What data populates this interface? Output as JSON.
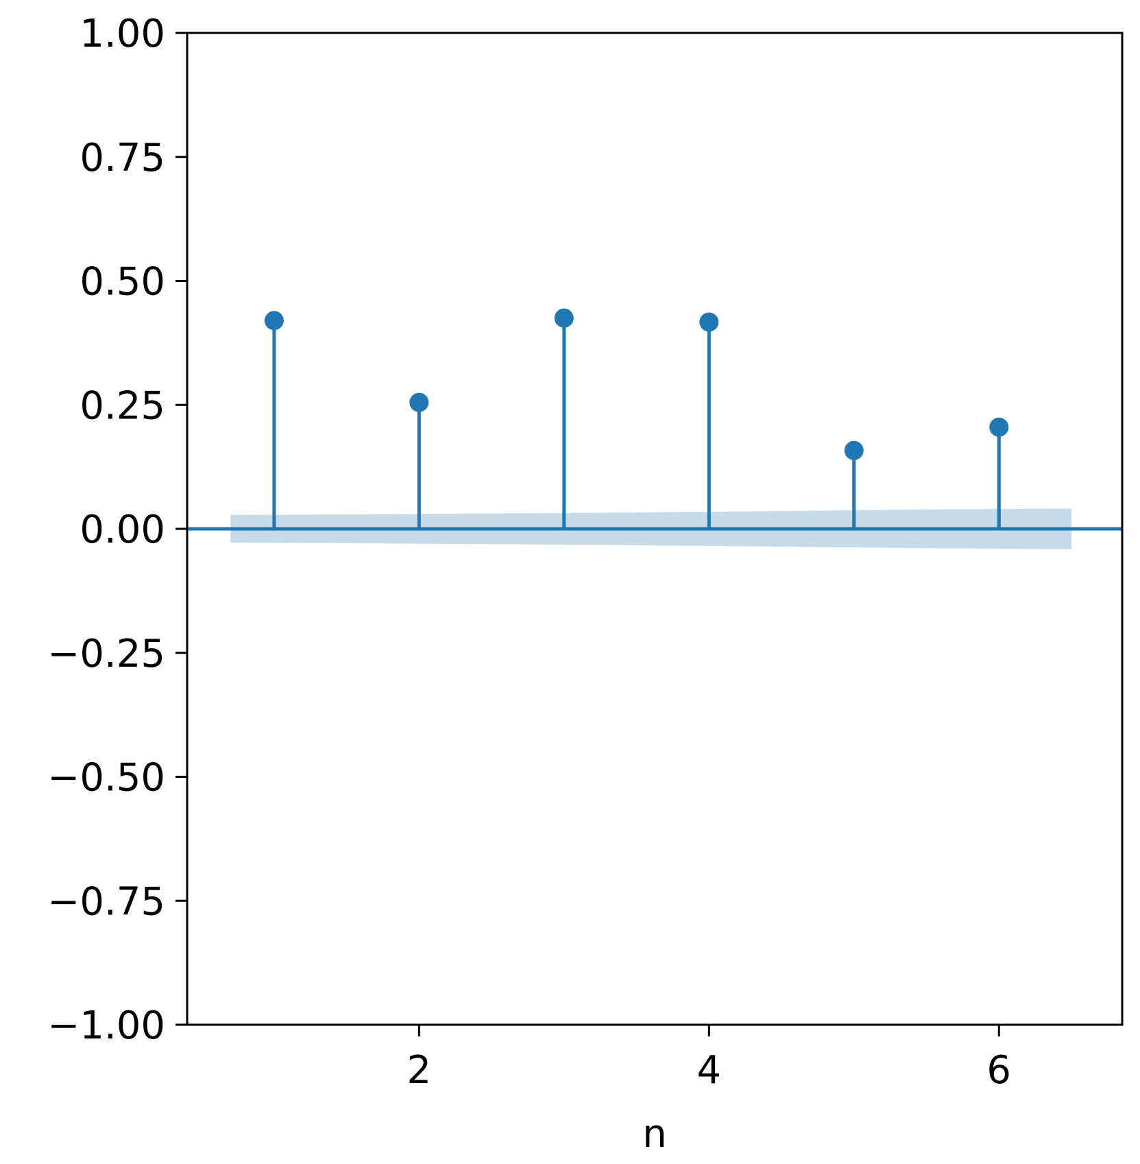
{
  "chart_data": {
    "type": "stem",
    "title": "",
    "xlabel": "n",
    "ylabel": "",
    "x": [
      1,
      2,
      3,
      4,
      5,
      6
    ],
    "values": [
      0.42,
      0.255,
      0.425,
      0.417,
      0.158,
      0.205
    ],
    "confidence_band": {
      "x": [
        0.7,
        1.5,
        2.5,
        3.5,
        4.5,
        5.5,
        6.5
      ],
      "upper": [
        0.028,
        0.029,
        0.031,
        0.033,
        0.036,
        0.039,
        0.041
      ],
      "lower": [
        -0.028,
        -0.029,
        -0.031,
        -0.033,
        -0.036,
        -0.039,
        -0.041
      ]
    },
    "xlim": [
      0.4,
      6.85
    ],
    "ylim": [
      -1.0,
      1.0
    ],
    "xticks": [
      2,
      4,
      6
    ],
    "xtick_labels": [
      "2",
      "4",
      "6"
    ],
    "yticks": [
      -1.0,
      -0.75,
      -0.5,
      -0.25,
      0.0,
      0.25,
      0.5,
      0.75,
      1.0
    ],
    "ytick_labels": [
      "−1.00",
      "−0.75",
      "−0.50",
      "−0.25",
      "0.00",
      "0.25",
      "0.50",
      "0.75",
      "1.00"
    ],
    "grid": false,
    "legend": "none",
    "colors": {
      "stem": "#1f77b4",
      "band": "#c6dbea",
      "axes": "#000000"
    }
  }
}
